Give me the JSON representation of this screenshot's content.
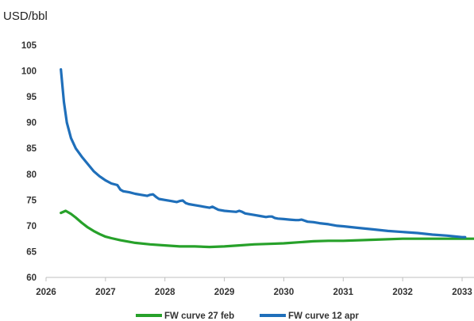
{
  "chart_data": {
    "type": "line",
    "ylabel": "USD/bbl",
    "ylim": [
      60,
      105
    ],
    "xlim": [
      2026,
      2033.2
    ],
    "y_ticks": [
      "60",
      "65",
      "70",
      "75",
      "80",
      "85",
      "90",
      "95",
      "100",
      "105"
    ],
    "x_ticks": [
      "2026",
      "2027",
      "2028",
      "2029",
      "2030",
      "2031",
      "2032",
      "2033"
    ],
    "grid": false,
    "legend_position": "bottom",
    "series": [
      {
        "name": "FW curve 27 feb",
        "color": "#27a12a",
        "x": [
          2026.25,
          2026.33,
          2026.42,
          2026.5,
          2026.6,
          2026.7,
          2026.8,
          2026.9,
          2027.0,
          2027.1,
          2027.25,
          2027.5,
          2027.75,
          2028.0,
          2028.25,
          2028.5,
          2028.75,
          2029.0,
          2029.25,
          2029.5,
          2029.75,
          2030.0,
          2030.25,
          2030.5,
          2030.75,
          2031.0,
          2031.5,
          2032.0,
          2032.5,
          2033.0,
          2033.2
        ],
        "y": [
          72.5,
          72.9,
          72.3,
          71.6,
          70.6,
          69.7,
          69.0,
          68.4,
          67.9,
          67.6,
          67.2,
          66.7,
          66.4,
          66.2,
          66.0,
          66.0,
          65.9,
          66.0,
          66.2,
          66.4,
          66.5,
          66.6,
          66.8,
          67.0,
          67.1,
          67.1,
          67.3,
          67.5,
          67.5,
          67.5,
          67.5
        ]
      },
      {
        "name": "FW curve 12 apr",
        "color": "#1f6fba",
        "x": [
          2026.25,
          2026.3,
          2026.35,
          2026.42,
          2026.5,
          2026.6,
          2026.7,
          2026.8,
          2026.9,
          2027.0,
          2027.1,
          2027.2,
          2027.25,
          2027.3,
          2027.4,
          2027.5,
          2027.6,
          2027.7,
          2027.75,
          2027.8,
          2027.85,
          2027.9,
          2028.0,
          2028.1,
          2028.2,
          2028.25,
          2028.3,
          2028.35,
          2028.4,
          2028.5,
          2028.6,
          2028.7,
          2028.75,
          2028.8,
          2028.85,
          2028.9,
          2029.0,
          2029.1,
          2029.2,
          2029.25,
          2029.3,
          2029.35,
          2029.4,
          2029.5,
          2029.6,
          2029.7,
          2029.75,
          2029.8,
          2029.85,
          2029.9,
          2030.0,
          2030.1,
          2030.2,
          2030.25,
          2030.3,
          2030.35,
          2030.4,
          2030.5,
          2030.6,
          2030.75,
          2030.9,
          2031.0,
          2031.25,
          2031.5,
          2031.75,
          2032.0,
          2032.25,
          2032.5,
          2032.75,
          2033.0,
          2033.05
        ],
        "y": [
          100.3,
          94.0,
          90.0,
          87.0,
          85.0,
          83.4,
          82.0,
          80.6,
          79.6,
          78.8,
          78.2,
          77.9,
          77.0,
          76.7,
          76.5,
          76.2,
          76.0,
          75.8,
          76.0,
          76.1,
          75.6,
          75.2,
          75.0,
          74.8,
          74.6,
          74.8,
          74.9,
          74.4,
          74.2,
          74.0,
          73.8,
          73.6,
          73.5,
          73.7,
          73.4,
          73.1,
          72.9,
          72.8,
          72.7,
          72.9,
          72.7,
          72.4,
          72.3,
          72.1,
          71.9,
          71.7,
          71.8,
          71.8,
          71.5,
          71.4,
          71.3,
          71.2,
          71.1,
          71.1,
          71.2,
          71.0,
          70.8,
          70.7,
          70.5,
          70.3,
          70.0,
          69.9,
          69.6,
          69.3,
          69.0,
          68.8,
          68.6,
          68.3,
          68.1,
          67.8,
          67.8
        ]
      }
    ]
  }
}
